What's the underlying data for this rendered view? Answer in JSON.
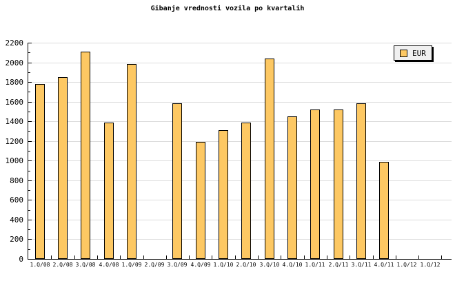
{
  "title": "Gibanje vrednosti vozila po kvartalih",
  "legend": {
    "series": [
      {
        "label": "EUR",
        "swatch_color": "#FDC863"
      }
    ]
  },
  "colors": {
    "background": "#FFFFFF",
    "bar_fill": "#FDC863",
    "bar_border": "#000000",
    "gridline": "#DCDCDC",
    "axis": "#000000",
    "text": "#000000",
    "legend_bg": "#F0F0F0",
    "legend_border": "#000000",
    "legend_shadow": "#000000"
  },
  "chart_data": {
    "type": "bar",
    "title": "Gibanje vrednosti vozila po kvartalih",
    "categories": [
      "1.Q/08",
      "2.Q/08",
      "3.Q/08",
      "4.Q/08",
      "1.Q/09",
      "2.Q/09",
      "3.Q/09",
      "4.Q/09",
      "1.Q/10",
      "2.Q/10",
      "3.Q/10",
      "4.Q/10",
      "1.Q/11",
      "2.Q/11",
      "3.Q/11",
      "4.Q/11",
      "1.Q/12",
      "1.Q/12"
    ],
    "series": [
      {
        "name": "EUR",
        "values": [
          1780,
          1850,
          2110,
          1390,
          1980,
          null,
          1580,
          1190,
          1310,
          1390,
          2040,
          1450,
          1520,
          1520,
          1580,
          990,
          null,
          null
        ]
      }
    ],
    "xlabel": "",
    "ylabel": "",
    "ylim": [
      0,
      2200
    ],
    "ytick_step": 200,
    "y_minor_tick_step": 100,
    "ytick_labels": [
      "0",
      "200",
      "400",
      "600",
      "800",
      "1000",
      "1200",
      "1400",
      "1600",
      "1800",
      "2000",
      "2200"
    ],
    "grid": true,
    "gridlines": "horizontal-major",
    "legend_entries": [
      "EUR"
    ],
    "legend_position": "top-right"
  }
}
